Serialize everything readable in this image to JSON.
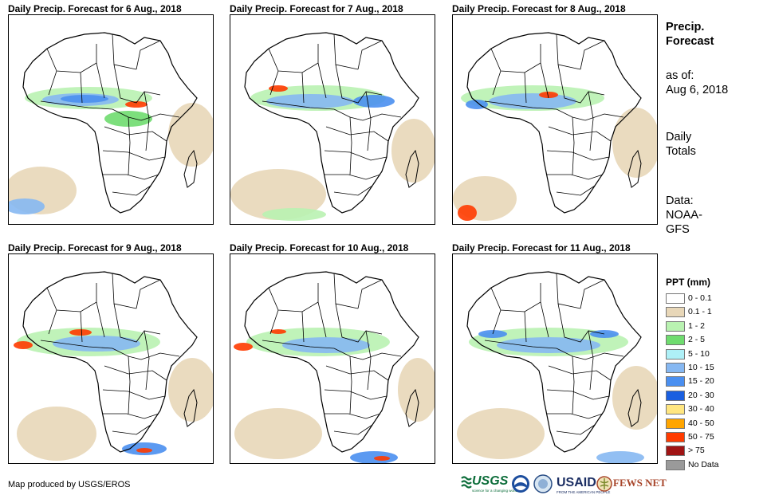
{
  "panels": [
    {
      "title": "Daily Precip. Forecast for 6 Aug., 2018"
    },
    {
      "title": "Daily Precip. Forecast for 7 Aug., 2018"
    },
    {
      "title": "Daily Precip. Forecast for 8 Aug., 2018"
    },
    {
      "title": "Daily Precip. Forecast for 9 Aug., 2018"
    },
    {
      "title": "Daily Precip. Forecast for 10 Aug., 2018"
    },
    {
      "title": "Daily Precip. Forecast for 11 Aug., 2018"
    }
  ],
  "sidebar": {
    "title_line1": "Precip.",
    "title_line2": "Forecast",
    "asof_label": "as of:",
    "asof_date": "Aug 6, 2018",
    "totals_line1": "Daily",
    "totals_line2": "Totals",
    "data_line1": "Data:",
    "data_line2": "NOAA-",
    "data_line3": "GFS"
  },
  "legend": {
    "title": "PPT (mm)",
    "items": [
      {
        "label": "0 - 0.1",
        "color": "#ffffff"
      },
      {
        "label": "0.1 - 1",
        "color": "#e8d7b8"
      },
      {
        "label": "1 - 2",
        "color": "#b9f2b1"
      },
      {
        "label": "2 - 5",
        "color": "#6fdc6f"
      },
      {
        "label": "5 - 10",
        "color": "#aef0f7"
      },
      {
        "label": "10 - 15",
        "color": "#86b8f2"
      },
      {
        "label": "15 - 20",
        "color": "#4a8ff0"
      },
      {
        "label": "20 - 30",
        "color": "#1a5fe0"
      },
      {
        "label": "30 - 40",
        "color": "#ffe680"
      },
      {
        "label": "40 - 50",
        "color": "#ffa500"
      },
      {
        "label": "50 - 75",
        "color": "#ff3b00"
      },
      {
        "label": "> 75",
        "color": "#a01414"
      },
      {
        "label": "No Data",
        "color": "#9a9a9a"
      }
    ]
  },
  "footer": {
    "credit": "Map produced by USGS/EROS",
    "usgs": "USGS",
    "usgs_tagline": "science for a changing world",
    "usaid": "USAID",
    "usaid_tagline": "FROM THE AMERICAN PEOPLE",
    "fews": "FEWS NET"
  }
}
